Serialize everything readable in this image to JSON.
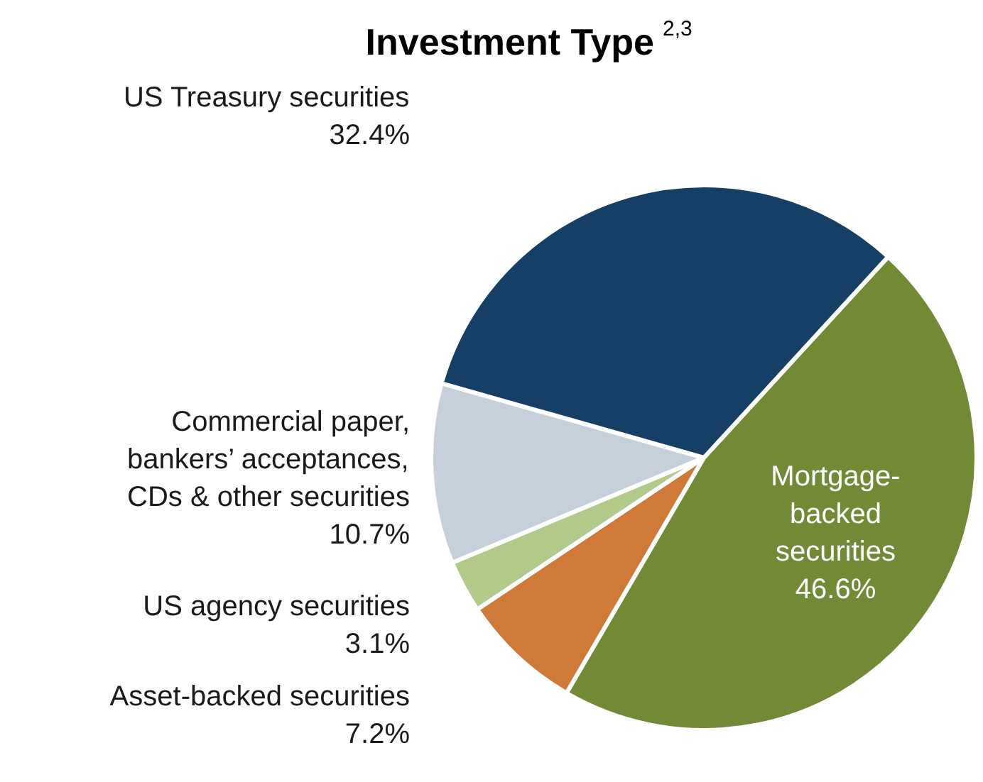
{
  "chart_data": {
    "type": "pie",
    "title": "Investment Type $^{2,3}$",
    "categories": [
      "Mortgage-\nbacked\nsecurities",
      "Asset-backed securities",
      "US agency securities",
      "Commercial paper,\nbankers’ acceptances,\nCDs & other securities",
      "US Treasury securities"
    ],
    "values": [
      46.6,
      7.2,
      3.1,
      10.7,
      32.4
    ],
    "value_labels": [
      "46.6%",
      "7.2%",
      "3.1%",
      "10.7%",
      "32.4%"
    ],
    "colors": [
      "#728a36",
      "#d07a3a",
      "#b3c98a",
      "#c6d0da",
      "#163f66"
    ]
  }
}
